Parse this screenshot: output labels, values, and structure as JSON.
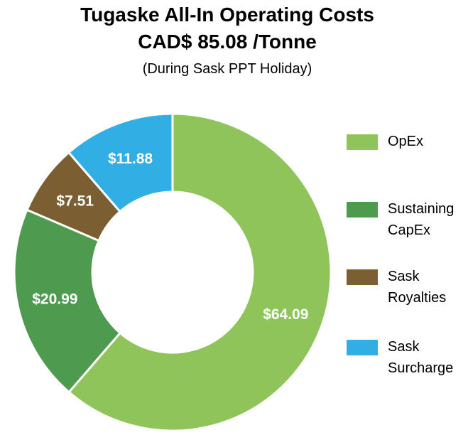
{
  "chart_data": {
    "type": "pie",
    "variant": "donut",
    "title": "Tugaske All-In Operating Costs",
    "title_line2": "CAD$ 85.08 /Tonne",
    "subtitle": "(During Sask PPT Holiday)",
    "slices": [
      {
        "label": "OpEx",
        "legend_lines": [
          "OpEx"
        ],
        "value": 64.09,
        "data_label": "$64.09",
        "color": "#8fc45b"
      },
      {
        "label": "Sustaining CapEx",
        "legend_lines": [
          "Sustaining",
          "CapEx"
        ],
        "value": 20.99,
        "data_label": "$20.99",
        "color": "#4e9a4f"
      },
      {
        "label": "Sask Royalties",
        "legend_lines": [
          "Sask",
          "Royalties"
        ],
        "value": 7.51,
        "data_label": "$7.51",
        "color": "#7b5f33"
      },
      {
        "label": "Sask Surcharge",
        "legend_lines": [
          "Sask",
          "Surcharge"
        ],
        "value": 11.88,
        "data_label": "$11.88",
        "color": "#31aee4"
      }
    ],
    "legend_position": "right"
  }
}
